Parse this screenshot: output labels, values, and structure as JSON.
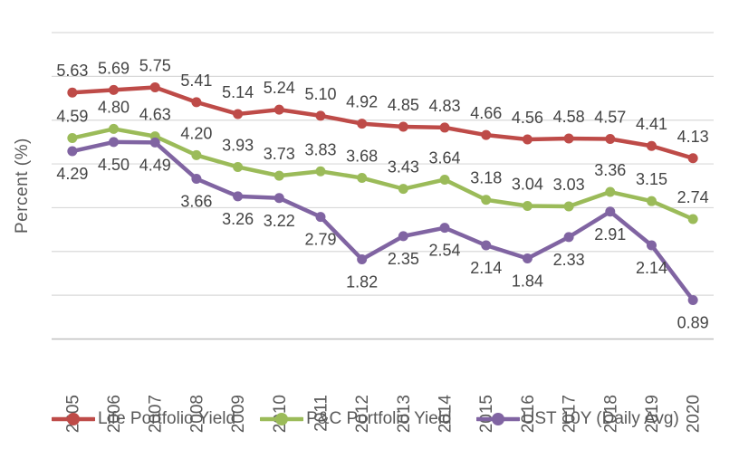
{
  "chart_data": {
    "type": "line",
    "title": "",
    "ylabel": "Percent (%)",
    "xlabel": "",
    "categories": [
      "2005",
      "2006",
      "2007",
      "2008",
      "2009",
      "2010",
      "2011",
      "2012",
      "2013",
      "2014",
      "2015",
      "2016",
      "2017",
      "2018",
      "2019",
      "2020"
    ],
    "ylim": [
      0,
      7
    ],
    "gridline_step": 1,
    "grid": true,
    "legend_position": "bottom",
    "value_decimals": 2,
    "series": [
      {
        "name": "Life Portfolio Yield",
        "color": "#BE4B48",
        "label_position": "above",
        "values": [
          5.63,
          5.69,
          5.75,
          5.41,
          5.14,
          5.24,
          5.1,
          4.92,
          4.85,
          4.83,
          4.66,
          4.56,
          4.58,
          4.57,
          4.41,
          4.13
        ]
      },
      {
        "name": "P&C Portfolio Yield",
        "color": "#9BBB59",
        "label_position": "above",
        "values": [
          4.59,
          4.8,
          4.63,
          4.2,
          3.93,
          3.73,
          3.83,
          3.68,
          3.43,
          3.64,
          3.18,
          3.04,
          3.03,
          3.36,
          3.15,
          2.74
        ]
      },
      {
        "name": "UST 10Y (Daily Avg)",
        "color": "#8064A2",
        "label_position": "below",
        "values": [
          4.29,
          4.5,
          4.49,
          3.66,
          3.26,
          3.22,
          2.79,
          1.82,
          2.35,
          2.54,
          2.14,
          1.84,
          2.33,
          2.91,
          2.14,
          0.89
        ]
      }
    ]
  },
  "style": {
    "gridline_color": "#D9D9D9",
    "axis_line_color": "#C0C0C0",
    "data_label_color": "#444444",
    "tick_label_color": "#595959",
    "legend_text_color": "#595959",
    "ylabel_color": "#595959",
    "background": "#FFFFFF"
  }
}
